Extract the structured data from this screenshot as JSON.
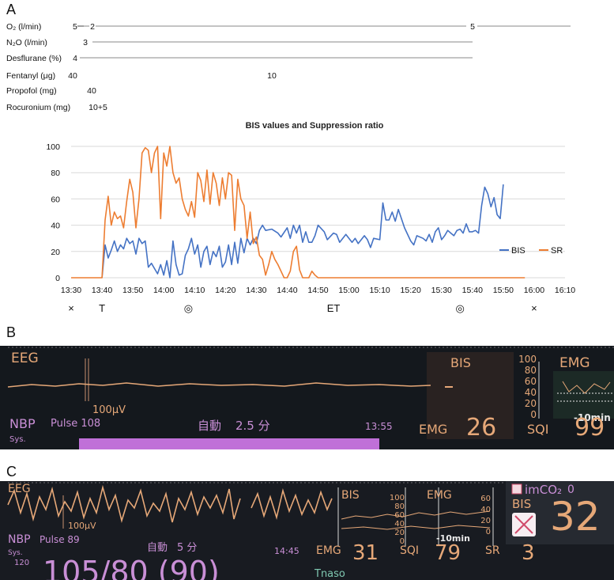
{
  "panels": {
    "a": "A",
    "b": "B",
    "c": "C"
  },
  "drugs": [
    {
      "label": "O₂ (l/min)",
      "values": [
        "5",
        "2",
        "5"
      ]
    },
    {
      "label": "N₂O (l/min)",
      "values": [
        "3"
      ]
    },
    {
      "label": "Desflurane (%)",
      "values": [
        "4"
      ]
    },
    {
      "label": "Fentanyl (μg)",
      "values": [
        "40",
        "10"
      ]
    },
    {
      "label": "Propofol (mg)",
      "values": [
        "40"
      ]
    },
    {
      "label": "Rocuronium (mg)",
      "values": [
        "10+5"
      ]
    }
  ],
  "chart_data": {
    "type": "line",
    "title": "BIS values and Suppression ratio",
    "xlabel": "",
    "ylabel": "",
    "x_ticks": [
      "13:30",
      "13:40",
      "13:50",
      "14:00",
      "14:10",
      "14:20",
      "14:30",
      "14:40",
      "14:50",
      "15:00",
      "15:10",
      "15:20",
      "15:30",
      "15:40",
      "15:50",
      "16:00",
      "16:10"
    ],
    "xlim": [
      "13:30",
      "16:10"
    ],
    "ylim": [
      0,
      100
    ],
    "y_ticks": [
      0,
      20,
      40,
      60,
      80,
      100
    ],
    "grid": "horizontal",
    "legend": "bottom-right",
    "series": [
      {
        "name": "BIS",
        "color": "#4472c4",
        "points": [
          [
            "13:40",
            0
          ],
          [
            "13:41",
            25
          ],
          [
            "13:42",
            15
          ],
          [
            "13:43",
            21
          ],
          [
            "13:44",
            28
          ],
          [
            "13:45",
            20
          ],
          [
            "13:46",
            25
          ],
          [
            "13:47",
            22
          ],
          [
            "13:48",
            30
          ],
          [
            "13:49",
            26
          ],
          [
            "13:50",
            28
          ],
          [
            "13:51",
            18
          ],
          [
            "13:52",
            30
          ],
          [
            "13:53",
            26
          ],
          [
            "13:54",
            28
          ],
          [
            "13:55",
            8
          ],
          [
            "13:56",
            11
          ],
          [
            "13:57",
            7
          ],
          [
            "13:58",
            3
          ],
          [
            "13:59",
            10
          ],
          [
            "14:00",
            2
          ],
          [
            "14:01",
            13
          ],
          [
            "14:02",
            0
          ],
          [
            "14:03",
            28
          ],
          [
            "14:04",
            10
          ],
          [
            "14:05",
            2
          ],
          [
            "14:06",
            3
          ],
          [
            "14:07",
            17
          ],
          [
            "14:08",
            22
          ],
          [
            "14:09",
            30
          ],
          [
            "14:10",
            18
          ],
          [
            "14:11",
            25
          ],
          [
            "14:12",
            8
          ],
          [
            "14:13",
            20
          ],
          [
            "14:14",
            24
          ],
          [
            "14:15",
            10
          ],
          [
            "14:16",
            20
          ],
          [
            "14:17",
            16
          ],
          [
            "14:18",
            24
          ],
          [
            "14:19",
            8
          ],
          [
            "14:20",
            12
          ],
          [
            "14:21",
            25
          ],
          [
            "14:22",
            10
          ],
          [
            "14:23",
            27
          ],
          [
            "14:24",
            11
          ],
          [
            "14:25",
            30
          ],
          [
            "14:26",
            19
          ],
          [
            "14:27",
            30
          ],
          [
            "14:28",
            25
          ],
          [
            "14:29",
            30
          ],
          [
            "14:30",
            26
          ],
          [
            "14:31",
            36
          ],
          [
            "14:32",
            40
          ],
          [
            "14:33",
            36
          ],
          [
            "14:35",
            37
          ],
          [
            "14:37",
            34
          ],
          [
            "14:38",
            31
          ],
          [
            "14:40",
            38
          ],
          [
            "14:41",
            30
          ],
          [
            "14:42",
            40
          ],
          [
            "14:43",
            34
          ],
          [
            "14:44",
            40
          ],
          [
            "14:45",
            27
          ],
          [
            "14:46",
            35
          ],
          [
            "14:47",
            27
          ],
          [
            "14:48",
            27
          ],
          [
            "14:49",
            32
          ],
          [
            "14:50",
            40
          ],
          [
            "14:52",
            35
          ],
          [
            "14:53",
            29
          ],
          [
            "14:55",
            34
          ],
          [
            "14:56",
            33
          ],
          [
            "14:57",
            27
          ],
          [
            "14:59",
            33
          ],
          [
            "15:00",
            30
          ],
          [
            "15:01",
            27
          ],
          [
            "15:02",
            30
          ],
          [
            "15:03",
            26
          ],
          [
            "15:05",
            32
          ],
          [
            "15:06",
            29
          ],
          [
            "15:07",
            23
          ],
          [
            "15:08",
            30
          ],
          [
            "15:10",
            29
          ],
          [
            "15:11",
            57
          ],
          [
            "15:12",
            44
          ],
          [
            "15:13",
            44
          ],
          [
            "15:14",
            50
          ],
          [
            "15:15",
            43
          ],
          [
            "15:16",
            52
          ],
          [
            "15:18",
            38
          ],
          [
            "15:20",
            28
          ],
          [
            "15:21",
            25
          ],
          [
            "15:22",
            32
          ],
          [
            "15:24",
            30
          ],
          [
            "15:25",
            28
          ],
          [
            "15:26",
            33
          ],
          [
            "15:27",
            27
          ],
          [
            "15:28",
            35
          ],
          [
            "15:29",
            38
          ],
          [
            "15:30",
            29
          ],
          [
            "15:31",
            32
          ],
          [
            "15:32",
            36
          ],
          [
            "15:33",
            34
          ],
          [
            "15:34",
            32
          ],
          [
            "15:35",
            36
          ],
          [
            "15:36",
            37
          ],
          [
            "15:37",
            34
          ],
          [
            "15:38",
            41
          ],
          [
            "15:39",
            35
          ],
          [
            "15:40",
            35
          ],
          [
            "15:41",
            36
          ],
          [
            "15:42",
            34
          ],
          [
            "15:43",
            55
          ],
          [
            "15:44",
            69
          ],
          [
            "15:45",
            64
          ],
          [
            "15:46",
            54
          ],
          [
            "15:47",
            61
          ],
          [
            "15:48",
            48
          ],
          [
            "15:49",
            45
          ],
          [
            "15:50",
            71
          ]
        ]
      },
      {
        "name": "SR",
        "color": "#ed7d31",
        "points": [
          [
            "13:30",
            0
          ],
          [
            "13:40",
            0
          ],
          [
            "13:41",
            44
          ],
          [
            "13:42",
            62
          ],
          [
            "13:43",
            40
          ],
          [
            "13:44",
            50
          ],
          [
            "13:45",
            45
          ],
          [
            "13:46",
            47
          ],
          [
            "13:47",
            38
          ],
          [
            "13:48",
            58
          ],
          [
            "13:49",
            75
          ],
          [
            "13:50",
            65
          ],
          [
            "13:51",
            38
          ],
          [
            "13:52",
            60
          ],
          [
            "13:53",
            95
          ],
          [
            "13:54",
            99
          ],
          [
            "13:55",
            97
          ],
          [
            "13:56",
            80
          ],
          [
            "13:57",
            95
          ],
          [
            "13:58",
            100
          ],
          [
            "13:59",
            45
          ],
          [
            "14:00",
            95
          ],
          [
            "14:01",
            85
          ],
          [
            "14:02",
            100
          ],
          [
            "14:03",
            80
          ],
          [
            "14:04",
            72
          ],
          [
            "14:05",
            76
          ],
          [
            "14:06",
            60
          ],
          [
            "14:07",
            52
          ],
          [
            "14:08",
            47
          ],
          [
            "14:09",
            58
          ],
          [
            "14:10",
            46
          ],
          [
            "14:11",
            80
          ],
          [
            "14:12",
            74
          ],
          [
            "14:13",
            58
          ],
          [
            "14:14",
            82
          ],
          [
            "14:15",
            56
          ],
          [
            "14:16",
            80
          ],
          [
            "14:17",
            72
          ],
          [
            "14:18",
            55
          ],
          [
            "14:19",
            76
          ],
          [
            "14:20",
            60
          ],
          [
            "14:21",
            80
          ],
          [
            "14:22",
            78
          ],
          [
            "14:23",
            36
          ],
          [
            "14:24",
            75
          ],
          [
            "14:25",
            60
          ],
          [
            "14:26",
            55
          ],
          [
            "14:27",
            30
          ],
          [
            "14:28",
            50
          ],
          [
            "14:29",
            26
          ],
          [
            "14:30",
            31
          ],
          [
            "14:31",
            17
          ],
          [
            "14:32",
            14
          ],
          [
            "14:33",
            2
          ],
          [
            "14:34",
            10
          ],
          [
            "14:35",
            20
          ],
          [
            "14:36",
            14
          ],
          [
            "14:37",
            10
          ],
          [
            "14:38",
            5
          ],
          [
            "14:39",
            0
          ],
          [
            "14:40",
            0
          ],
          [
            "14:41",
            5
          ],
          [
            "14:42",
            20
          ],
          [
            "14:43",
            24
          ],
          [
            "14:44",
            6
          ],
          [
            "14:45",
            0
          ],
          [
            "14:46",
            0
          ],
          [
            "14:47",
            0
          ],
          [
            "14:48",
            5
          ],
          [
            "14:49",
            2
          ],
          [
            "14:50",
            0
          ],
          [
            "15:57",
            0
          ]
        ]
      }
    ],
    "annotations": [
      {
        "time": "13:30",
        "label": "×"
      },
      {
        "time": "13:40",
        "label": "T"
      },
      {
        "time": "14:08",
        "label": "◎"
      },
      {
        "time": "14:55",
        "label": "ET"
      },
      {
        "time": "15:36",
        "label": "◎"
      },
      {
        "time": "16:00",
        "label": "×"
      }
    ]
  },
  "monitorB": {
    "eeg": "EEG",
    "bis": "BIS",
    "emg_scale": "EMG",
    "scale": "100μV",
    "nbp": "NBP",
    "pulse": "Pulse 108",
    "sys": "Sys.",
    "auto": "自動",
    "interval": "2.5 分",
    "time": "13:55",
    "emg": "EMG",
    "emg_value": "26",
    "sqi": "SQI",
    "sqi_value": "99",
    "axis_ticks": [
      "100",
      "80",
      "60",
      "40",
      "20",
      "0"
    ],
    "trend": "-10min"
  },
  "monitorC": {
    "eeg": "EEG",
    "bis": "BIS",
    "emg_scale": "EMG",
    "scale": "100μV",
    "nbp": "NBP",
    "pulse": "Pulse 89",
    "sys": "Sys.",
    "sys_value": "120",
    "auto": "自動",
    "interval": "5 分",
    "time": "14:45",
    "emg": "EMG",
    "emg_value": "31",
    "sqi": "SQI",
    "sqi_value": "79",
    "sr": "SR",
    "sr_value": "3",
    "bis_value": "32",
    "imco2": "imCO₂",
    "imco2_value": "0",
    "bp": "105/80 (90)",
    "tnaso": "Tnaso",
    "axis_ticks": [
      "100",
      "80",
      "60",
      "40",
      "20",
      "0"
    ],
    "emg_ticks": [
      "60",
      "40",
      "20",
      "0"
    ],
    "trend": "-10min"
  }
}
